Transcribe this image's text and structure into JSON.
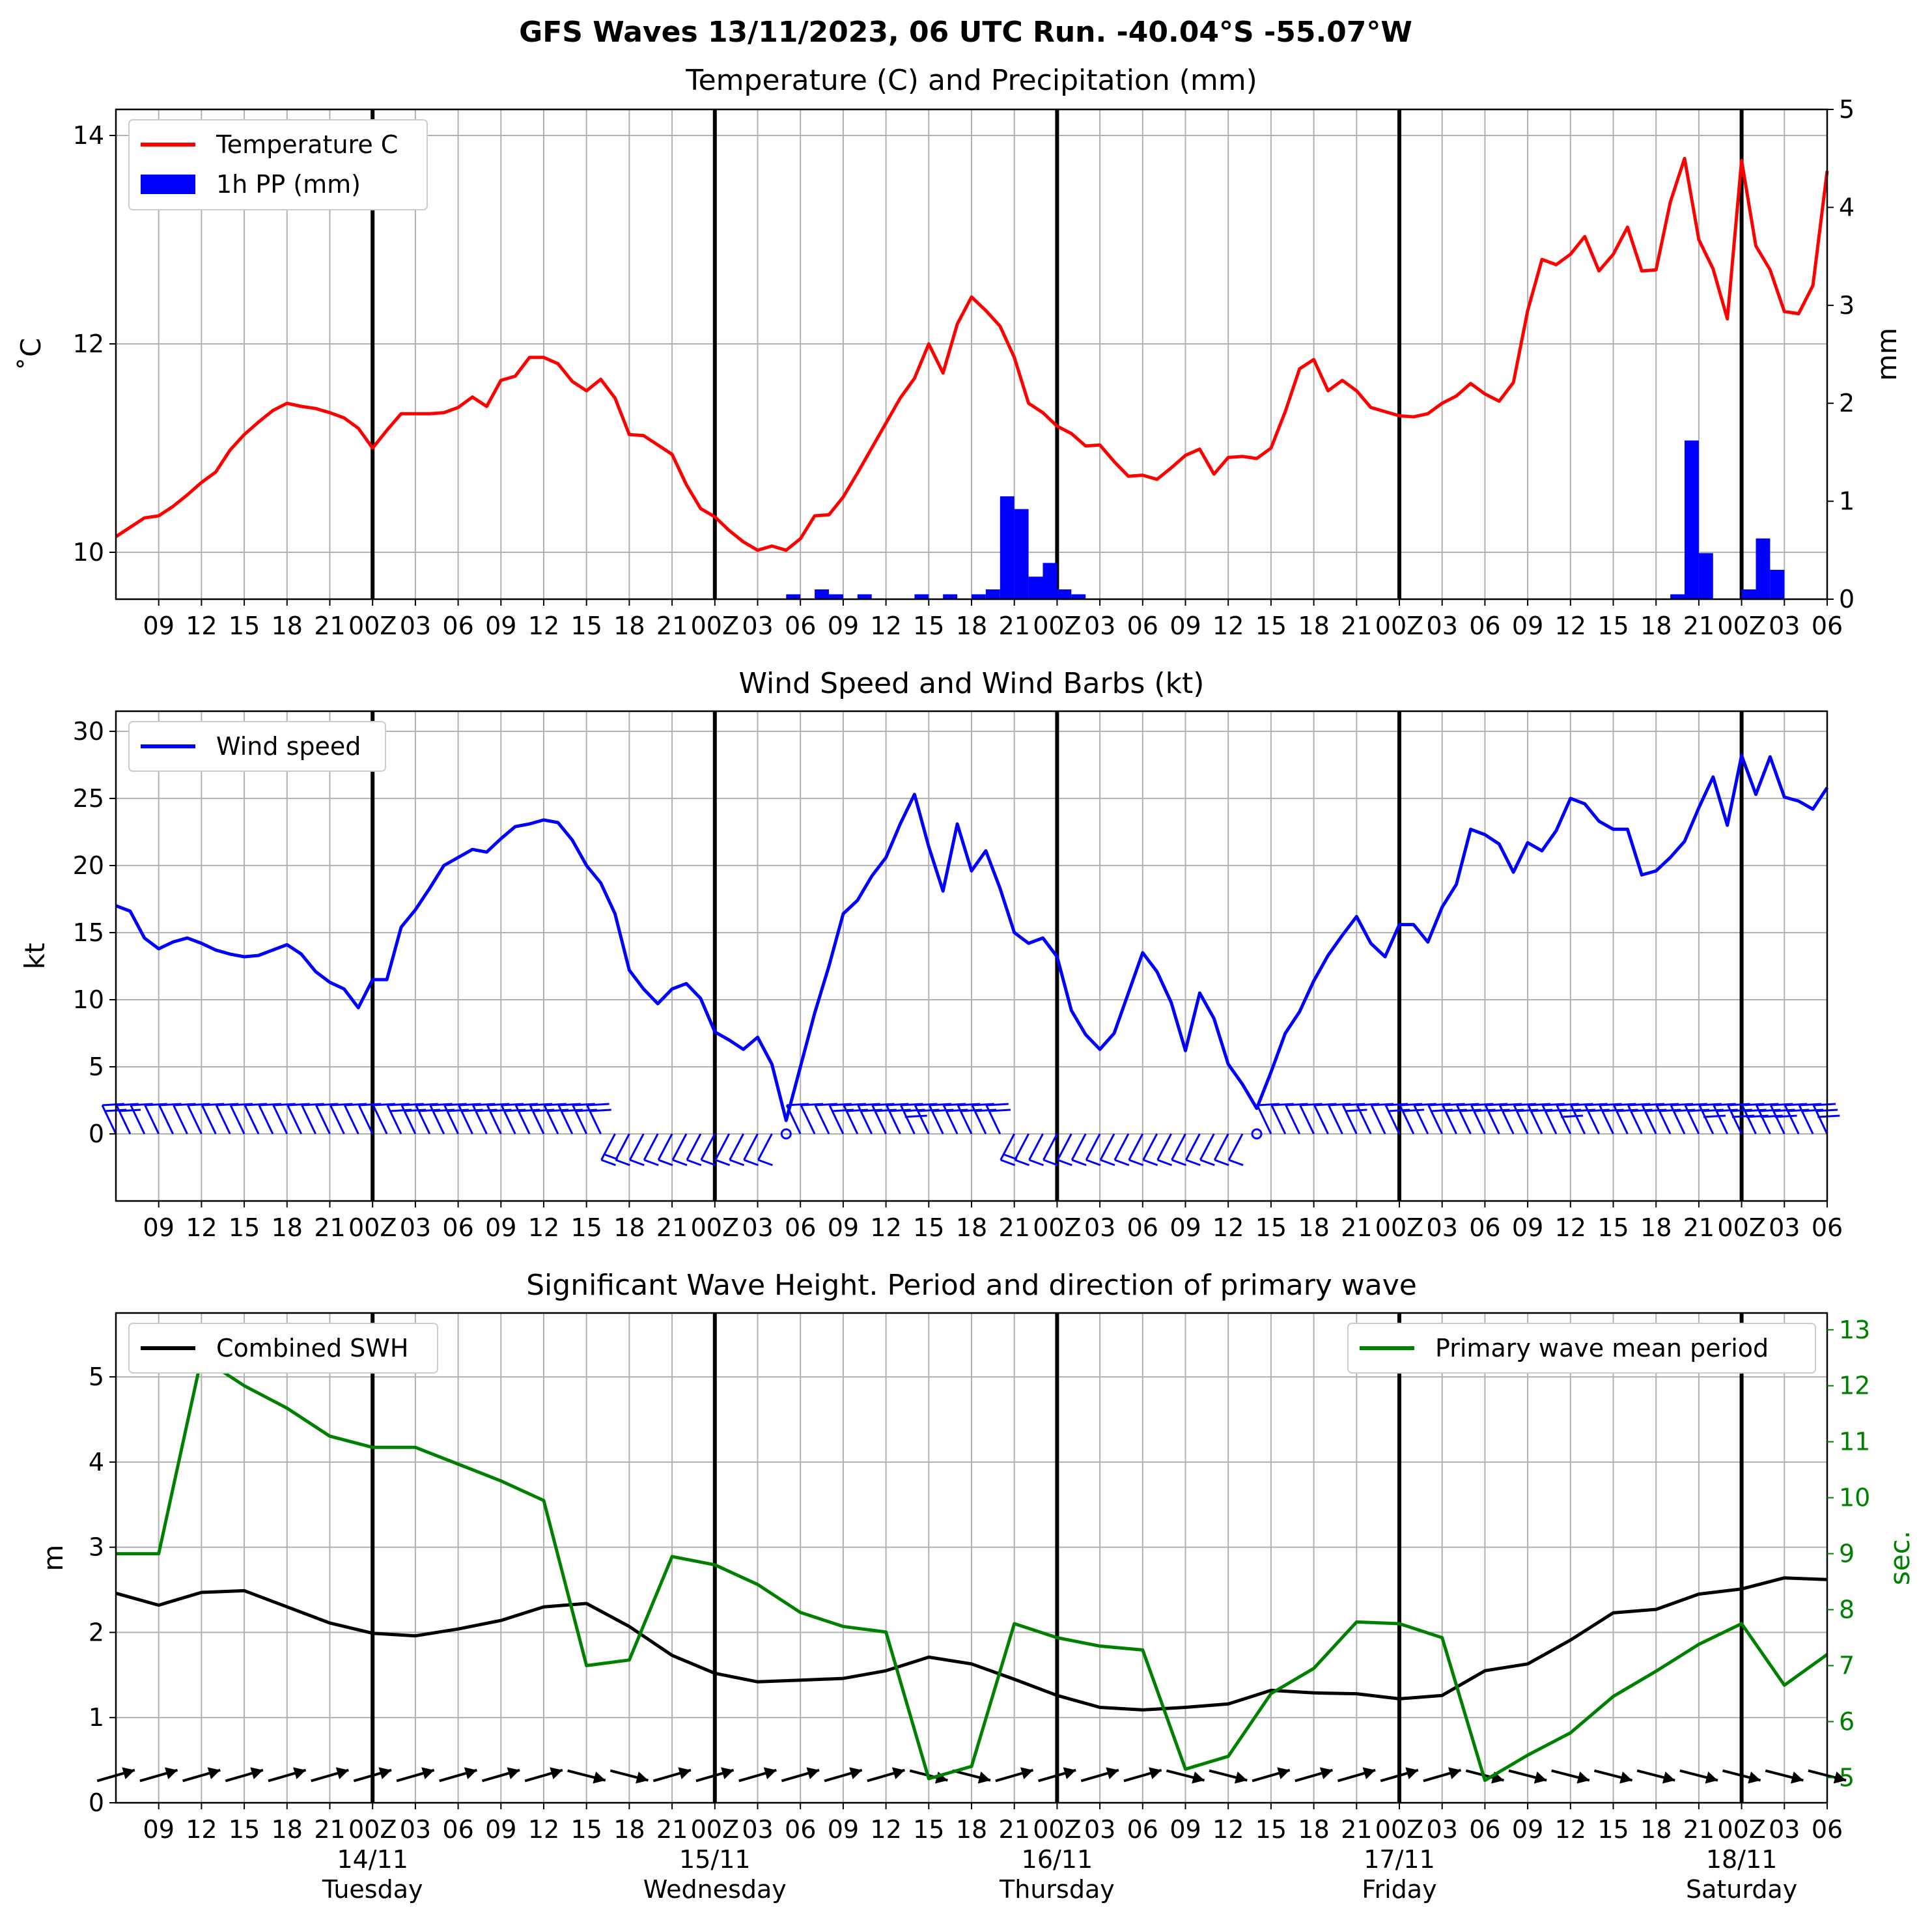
{
  "title": "GFS Waves 13/11/2023, 06 UTC Run. -40.04°S -55.07°W",
  "hour_labels": [
    "09",
    "12",
    "15",
    "18",
    "21",
    "00Z",
    "03",
    "06",
    "09",
    "12",
    "15",
    "18",
    "21",
    "00Z",
    "03",
    "06",
    "09",
    "12",
    "15",
    "18",
    "21",
    "00Z",
    "03",
    "06",
    "09",
    "12",
    "15",
    "18",
    "21",
    "00Z",
    "03",
    "06",
    "09",
    "12",
    "15",
    "18",
    "21",
    "00Z",
    "03",
    "06"
  ],
  "day_labels": [
    {
      "date": "14/11",
      "weekday": "Tuesday"
    },
    {
      "date": "15/11",
      "weekday": "Wednesday"
    },
    {
      "date": "16/11",
      "weekday": "Thursday"
    },
    {
      "date": "17/11",
      "weekday": "Friday"
    },
    {
      "date": "18/11",
      "weekday": "Saturday"
    }
  ],
  "colors": {
    "temperature": "#ff0000",
    "precip": "#0000ff",
    "wind": "#0000ff",
    "swh": "#000000",
    "period": "#008000",
    "grid": "#b0b0b0"
  },
  "chart_data": [
    {
      "type": "line",
      "title": "Temperature (C) and Precipitation (mm)",
      "x_range": [
        "13/11 06",
        "18/11 06"
      ],
      "ylabel": "$^\\circ$C",
      "ylabel_display": "˚C",
      "ylabel_right": "mm",
      "ylim": [
        9.55,
        14.25
      ],
      "y_ticks": [
        10,
        12,
        14
      ],
      "ylim_right": [
        0,
        5
      ],
      "y_ticks_right": [
        0,
        1,
        2,
        3,
        4,
        5
      ],
      "grid": true,
      "legend_position": "top-left",
      "legend": [
        "Temperature C",
        "1h PP (mm)"
      ],
      "series": [
        {
          "name": "Temperature C",
          "type": "line",
          "values": [
            10.15,
            10.24,
            10.33,
            10.35,
            10.44,
            10.55,
            10.67,
            10.77,
            10.98,
            11.13,
            11.25,
            11.36,
            11.43,
            11.4,
            11.38,
            11.34,
            11.29,
            11.19,
            11.0,
            11.17,
            11.33,
            11.33,
            11.33,
            11.34,
            11.39,
            11.49,
            11.4,
            11.65,
            11.69,
            11.87,
            11.87,
            11.81,
            11.64,
            11.55,
            11.66,
            11.48,
            11.13,
            11.12,
            11.03,
            10.94,
            10.65,
            10.42,
            10.34,
            10.21,
            10.1,
            10.02,
            10.06,
            10.02,
            10.13,
            10.35,
            10.36,
            10.53,
            10.76,
            11.0,
            11.24,
            11.48,
            11.67,
            12.0,
            11.72,
            12.19,
            12.45,
            12.32,
            12.17,
            11.87,
            11.43,
            11.34,
            11.21,
            11.14,
            11.02,
            11.03,
            10.87,
            10.73,
            10.74,
            10.7,
            10.81,
            10.93,
            10.99,
            10.75,
            10.91,
            10.92,
            10.9,
            11.0,
            11.35,
            11.76,
            11.85,
            11.55,
            11.65,
            11.55,
            11.39,
            11.35,
            11.31,
            11.3,
            11.33,
            11.43,
            11.5,
            11.62,
            11.52,
            11.45,
            11.63,
            12.32,
            12.81,
            12.76,
            12.86,
            13.03,
            12.7,
            12.86,
            13.12,
            12.7,
            12.71,
            13.36,
            13.78,
            13.0,
            12.72,
            12.24,
            13.76,
            12.94,
            12.71,
            12.31,
            12.29,
            12.56,
            13.66
          ]
        },
        {
          "name": "1h PP (mm)",
          "type": "bar",
          "values": [
            0,
            0,
            0,
            0,
            0,
            0,
            0,
            0,
            0,
            0,
            0,
            0,
            0,
            0,
            0,
            0,
            0,
            0,
            0,
            0,
            0,
            0,
            0,
            0,
            0,
            0,
            0,
            0,
            0,
            0,
            0,
            0,
            0,
            0,
            0,
            0,
            0,
            0,
            0,
            0,
            0,
            0,
            0,
            0,
            0,
            0,
            0,
            0,
            0.05,
            0,
            0.1,
            0.05,
            0,
            0.05,
            0,
            0,
            0,
            0.05,
            0,
            0.05,
            0,
            0.05,
            0.1,
            1.05,
            0.92,
            0.23,
            0.37,
            0.1,
            0.05,
            0,
            0,
            0,
            0,
            0,
            0,
            0,
            0,
            0,
            0,
            0,
            0,
            0,
            0,
            0,
            0,
            0,
            0,
            0,
            0,
            0,
            0,
            0,
            0,
            0,
            0,
            0,
            0,
            0,
            0,
            0,
            0,
            0,
            0,
            0,
            0,
            0,
            0,
            0,
            0,
            0,
            0.05,
            1.62,
            0.47,
            0,
            0,
            0.1,
            0.62,
            0.3,
            0
          ]
        }
      ]
    },
    {
      "type": "line",
      "title": "Wind Speed and Wind Barbs (kt)",
      "x_range": [
        "13/11 06",
        "18/11 06"
      ],
      "ylabel": "kt",
      "ylim": [
        -5,
        31.5
      ],
      "y_ticks": [
        0,
        5,
        10,
        15,
        20,
        25,
        30
      ],
      "grid": true,
      "legend_position": "top-left",
      "legend": [
        "Wind speed"
      ],
      "series": [
        {
          "name": "Wind speed",
          "values": [
            17.0,
            16.6,
            14.6,
            13.8,
            14.3,
            14.6,
            14.2,
            13.7,
            13.4,
            13.2,
            13.3,
            13.7,
            14.1,
            13.4,
            12.1,
            11.3,
            10.8,
            9.4,
            11.5,
            11.5,
            15.4,
            16.7,
            18.3,
            20.0,
            20.6,
            21.2,
            21.0,
            22.0,
            22.9,
            23.1,
            23.4,
            23.2,
            21.9,
            20.0,
            18.7,
            16.4,
            12.2,
            10.8,
            9.7,
            10.8,
            11.2,
            10.1,
            7.6,
            7.0,
            6.3,
            7.2,
            5.2,
            1.0,
            5.0,
            9.0,
            12.5,
            16.4,
            17.4,
            19.2,
            20.6,
            23.1,
            25.3,
            21.4,
            18.1,
            23.1,
            19.6,
            21.1,
            18.3,
            15.0,
            14.2,
            14.6,
            13.2,
            9.2,
            7.4,
            6.3,
            7.5,
            10.5,
            13.5,
            12.1,
            9.8,
            6.2,
            10.5,
            8.6,
            5.2,
            3.7,
            1.9,
            4.6,
            7.5,
            9.1,
            11.4,
            13.3,
            14.8,
            16.2,
            14.2,
            13.2,
            15.6,
            15.6,
            14.3,
            16.9,
            18.6,
            22.7,
            22.3,
            21.6,
            19.5,
            21.7,
            21.1,
            22.6,
            25.0,
            24.6,
            23.3,
            22.7,
            22.7,
            19.3,
            19.6,
            20.6,
            21.8,
            24.3,
            26.6,
            23.0,
            28.2,
            25.3,
            28.1,
            25.1,
            24.8,
            24.2,
            25.8
          ]
        },
        {
          "name": "wind_barbs",
          "type": "barbs",
          "note": "direction/speed glyphs per time step"
        }
      ]
    },
    {
      "type": "line",
      "title": "Significant Wave Height. Period and direction of primary wave",
      "x_range": [
        "13/11 06",
        "18/11 06"
      ],
      "ylabel": "m",
      "ylabel_right": "sec.",
      "ylim": [
        0,
        5.75
      ],
      "y_ticks": [
        0,
        1,
        2,
        3,
        4,
        5
      ],
      "ylim_right": [
        4.55,
        13.3
      ],
      "y_ticks_right": [
        5,
        6,
        7,
        8,
        9,
        10,
        11,
        12,
        13
      ],
      "grid": true,
      "legend_position": "top-left / top-right",
      "legend": [
        "Combined SWH",
        "Primary wave mean period"
      ],
      "series": [
        {
          "name": "Combined SWH",
          "values": [
            2.46,
            2.32,
            2.47,
            2.49,
            2.3,
            2.11,
            1.99,
            1.96,
            2.04,
            2.14,
            2.3,
            2.34,
            2.07,
            1.73,
            1.52,
            1.42,
            1.44,
            1.46,
            1.55,
            1.71,
            1.63,
            1.45,
            1.26,
            1.12,
            1.09,
            1.12,
            1.16,
            1.32,
            1.29,
            1.28,
            1.22,
            1.26,
            1.55,
            1.63,
            1.91,
            2.23,
            2.27,
            2.45,
            2.51,
            2.64,
            2.62
          ]
        },
        {
          "name": "Primary wave mean period",
          "axis": "right",
          "values": [
            9.0,
            9.0,
            12.5,
            12.0,
            11.6,
            11.1,
            10.9,
            10.9,
            10.6,
            10.3,
            9.95,
            7.0,
            7.1,
            8.95,
            8.8,
            8.45,
            7.95,
            7.7,
            7.6,
            4.98,
            5.2,
            7.75,
            7.5,
            7.35,
            7.28,
            5.15,
            5.38,
            6.5,
            6.95,
            7.78,
            7.75,
            7.5,
            4.95,
            5.4,
            5.8,
            6.45,
            6.9,
            7.38,
            7.75,
            6.65,
            7.2
          ]
        },
        {
          "name": "wave_direction",
          "type": "arrows",
          "note": "primary wave direction arrows per 3h step"
        }
      ]
    }
  ]
}
